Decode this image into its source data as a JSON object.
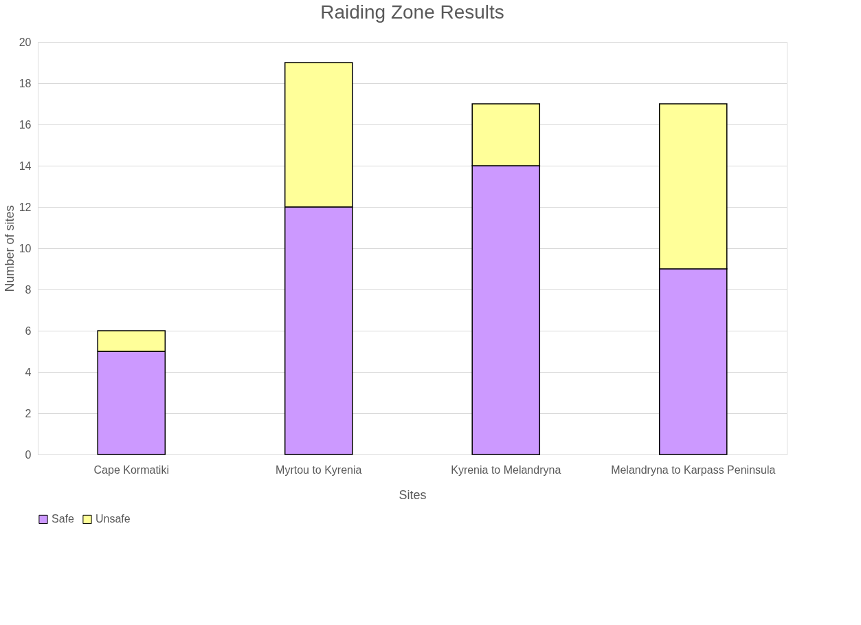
{
  "chart_data": {
    "type": "bar",
    "title": "Raiding Zone Results",
    "xlabel": "Sites",
    "ylabel": "Number of sites",
    "categories": [
      "Cape Kormatiki",
      "Myrtou to Kyrenia",
      "Kyrenia to Melandryna",
      "Melandryna to Karpass Peninsula"
    ],
    "series": [
      {
        "name": "Safe",
        "color": "#cc99ff",
        "values": [
          5,
          12,
          14,
          9
        ]
      },
      {
        "name": "Unsafe",
        "color": "#ffff99",
        "values": [
          1,
          7,
          3,
          8
        ]
      }
    ],
    "stacked": true,
    "ylim": [
      0,
      20
    ],
    "yticks": [
      0,
      2,
      4,
      6,
      8,
      10,
      12,
      14,
      16,
      18,
      20
    ],
    "grid": "y",
    "legend": "bottom"
  }
}
